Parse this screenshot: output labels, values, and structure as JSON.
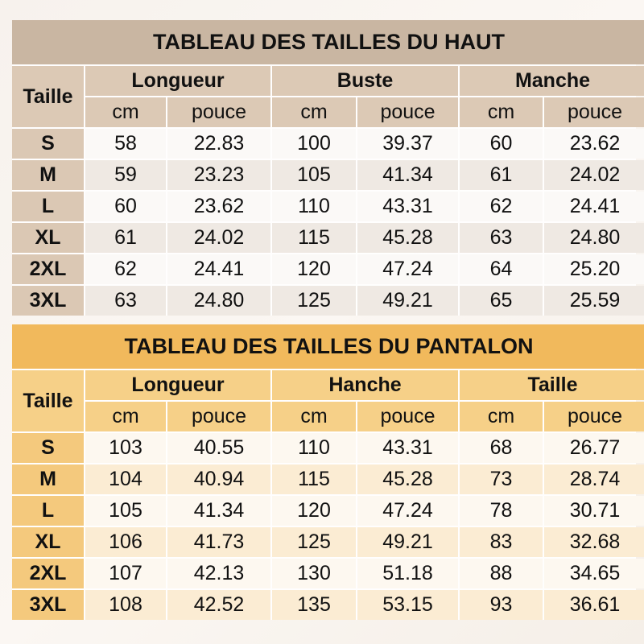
{
  "tables": [
    {
      "title": "TABLEAU DES TAILLES DU HAUT",
      "size_label": "Taille",
      "groups": [
        "Longueur",
        "Buste",
        "Manche"
      ],
      "units": [
        "cm",
        "pouce",
        "cm",
        "pouce",
        "cm",
        "pouce"
      ],
      "rows": [
        [
          "S",
          "58",
          "22.83",
          "100",
          "39.37",
          "60",
          "23.62"
        ],
        [
          "M",
          "59",
          "23.23",
          "105",
          "41.34",
          "61",
          "24.02"
        ],
        [
          "L",
          "60",
          "23.62",
          "110",
          "43.31",
          "62",
          "24.41"
        ],
        [
          "XL",
          "61",
          "24.02",
          "115",
          "45.28",
          "63",
          "24.80"
        ],
        [
          "2XL",
          "62",
          "24.41",
          "120",
          "47.24",
          "64",
          "25.20"
        ],
        [
          "3XL",
          "63",
          "24.80",
          "125",
          "49.21",
          "65",
          "25.59"
        ]
      ],
      "colors": {
        "title": "#c9b6a2",
        "header": "#dcc9b5"
      }
    },
    {
      "title": "TABLEAU DES TAILLES DU PANTALON",
      "size_label": "Taille",
      "groups": [
        "Longueur",
        "Hanche",
        "Taille"
      ],
      "units": [
        "cm",
        "pouce",
        "cm",
        "pouce",
        "cm",
        "pouce"
      ],
      "rows": [
        [
          "S",
          "103",
          "40.55",
          "110",
          "43.31",
          "68",
          "26.77"
        ],
        [
          "M",
          "104",
          "40.94",
          "115",
          "45.28",
          "73",
          "28.74"
        ],
        [
          "L",
          "105",
          "41.34",
          "120",
          "47.24",
          "78",
          "30.71"
        ],
        [
          "XL",
          "106",
          "41.73",
          "125",
          "49.21",
          "83",
          "32.68"
        ],
        [
          "2XL",
          "107",
          "42.13",
          "130",
          "51.18",
          "88",
          "34.65"
        ],
        [
          "3XL",
          "108",
          "42.52",
          "135",
          "53.15",
          "93",
          "36.61"
        ]
      ],
      "colors": {
        "title": "#f1b95c",
        "header": "#f6d088"
      }
    }
  ]
}
